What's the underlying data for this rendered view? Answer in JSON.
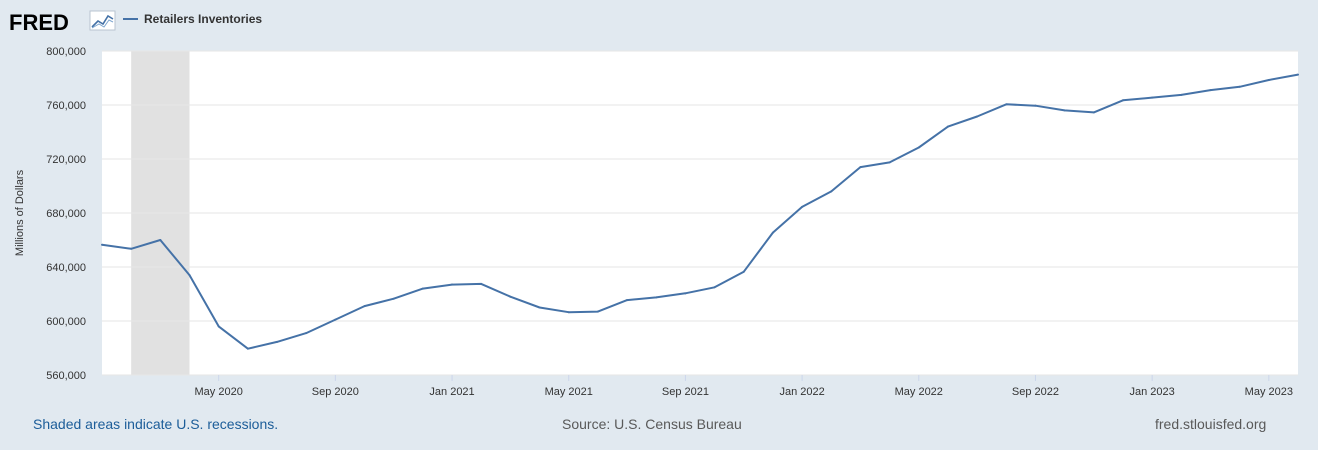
{
  "brand": {
    "logo_text": "FRED"
  },
  "legend": {
    "label": "Retailers Inventories"
  },
  "footer": {
    "recessions_note": "Shaded areas indicate U.S. recessions.",
    "source": "Source: U.S. Census Bureau",
    "site": "fred.stlouisfed.org"
  },
  "colors": {
    "line": "#4572a7",
    "recession": "#e1e1e1",
    "background": "#e1e9f0",
    "plot": "#ffffff",
    "grid": "#e6e6e6",
    "footer_link": "#1c5d99"
  },
  "chart_data": {
    "type": "line",
    "title": "",
    "xlabel": "",
    "ylabel": "Millions of Dollars",
    "ylim": [
      560000,
      800000
    ],
    "yticks": [
      560000,
      600000,
      640000,
      680000,
      720000,
      760000,
      800000
    ],
    "ytick_labels": [
      "560,000",
      "600,000",
      "640,000",
      "680,000",
      "720,000",
      "760,000",
      "800,000"
    ],
    "xlim": [
      "2020-01",
      "2023-06"
    ],
    "xticks": [
      {
        "date": "2020-05",
        "label": "May 2020"
      },
      {
        "date": "2020-09",
        "label": "Sep 2020"
      },
      {
        "date": "2021-01",
        "label": "Jan 2021"
      },
      {
        "date": "2021-05",
        "label": "May 2021"
      },
      {
        "date": "2021-09",
        "label": "Sep 2021"
      },
      {
        "date": "2022-01",
        "label": "Jan 2022"
      },
      {
        "date": "2022-05",
        "label": "May 2022"
      },
      {
        "date": "2022-09",
        "label": "Sep 2022"
      },
      {
        "date": "2023-01",
        "label": "Jan 2023"
      },
      {
        "date": "2023-05",
        "label": "May 2023"
      }
    ],
    "recessions": [
      {
        "start": "2020-02",
        "end": "2020-04"
      }
    ],
    "grid": true,
    "legend_position": "top-left",
    "series": [
      {
        "name": "Retailers Inventories",
        "x": [
          "2020-01",
          "2020-02",
          "2020-03",
          "2020-04",
          "2020-05",
          "2020-06",
          "2020-07",
          "2020-08",
          "2020-09",
          "2020-10",
          "2020-11",
          "2020-12",
          "2021-01",
          "2021-02",
          "2021-03",
          "2021-04",
          "2021-05",
          "2021-06",
          "2021-07",
          "2021-08",
          "2021-09",
          "2021-10",
          "2021-11",
          "2021-12",
          "2022-01",
          "2022-02",
          "2022-03",
          "2022-04",
          "2022-05",
          "2022-06",
          "2022-07",
          "2022-08",
          "2022-09",
          "2022-10",
          "2022-11",
          "2022-12",
          "2023-01",
          "2023-02",
          "2023-03",
          "2023-04",
          "2023-05",
          "2023-06"
        ],
        "values": [
          656500,
          653500,
          660000,
          634000,
          596000,
          579500,
          584500,
          591000,
          601000,
          611000,
          616500,
          624000,
          627000,
          627500,
          618000,
          610000,
          606500,
          607000,
          615500,
          617500,
          620500,
          625000,
          636500,
          665500,
          684500,
          696000,
          714000,
          717500,
          728500,
          744000,
          751500,
          760500,
          759500,
          756000,
          754500,
          763500,
          765500,
          767500,
          771000,
          773500,
          778500,
          782500
        ]
      }
    ]
  }
}
